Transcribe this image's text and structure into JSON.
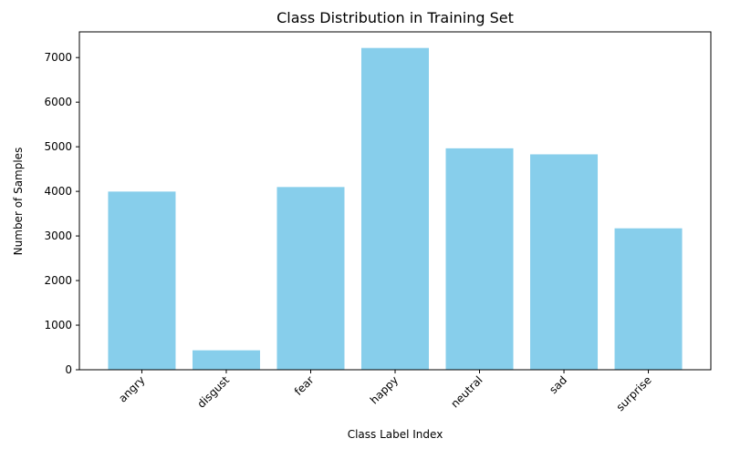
{
  "chart_data": {
    "type": "bar",
    "title": "Class Distribution in Training Set",
    "xlabel": "Class Label Index",
    "ylabel": "Number of Samples",
    "categories": [
      "angry",
      "disgust",
      "fear",
      "happy",
      "neutral",
      "sad",
      "surprise"
    ],
    "values": [
      3995,
      436,
      4097,
      7215,
      4965,
      4830,
      3171
    ],
    "ylim": [
      0,
      7576
    ],
    "yticks": [
      0,
      1000,
      2000,
      3000,
      4000,
      5000,
      6000,
      7000
    ],
    "bar_color": "#87ceeb",
    "grid": false,
    "legend": "none",
    "xtick_rotation": 45
  }
}
